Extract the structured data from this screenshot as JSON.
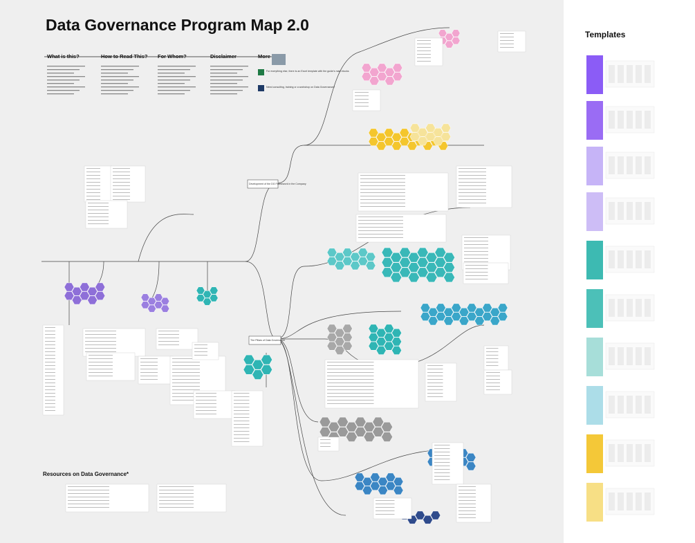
{
  "header": {
    "title": "Data Governance Program Map 2.0"
  },
  "sections": [
    {
      "heading": "What is this?"
    },
    {
      "heading": "How to Read This?"
    },
    {
      "heading": "For Whom?"
    },
    {
      "heading": "Disclaimer"
    },
    {
      "heading": "More"
    }
  ],
  "more": {
    "excel_note": "For everything else, there is an Excel template with the guide's main blocks",
    "consulting_note": "Need consulting, training or a workshop on Data Governance?"
  },
  "nodes": [
    {
      "label": "Development of the DG Framework in the Company"
    },
    {
      "label": "The Pillars of Data Governance"
    }
  ],
  "resources": {
    "title": "Resources on Data Governance*"
  },
  "templates": {
    "title": "Templates"
  }
}
